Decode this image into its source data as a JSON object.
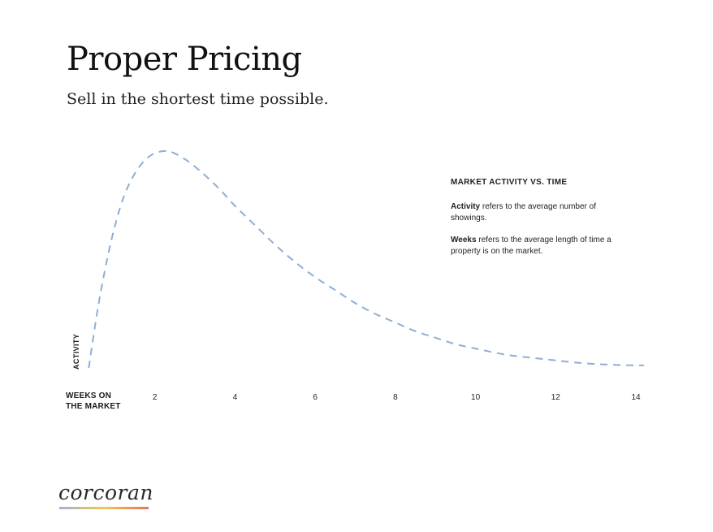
{
  "header": {
    "title": "Proper Pricing",
    "subtitle": "Sell in the shortest time possible."
  },
  "notes": {
    "heading": "MARKET ACTIVITY VS. TIME",
    "activity_term": "Activity",
    "activity_text": " refers to the average number of showings.",
    "weeks_term": "Weeks",
    "weeks_text": " refers to the average length of time a property is on the market."
  },
  "axes": {
    "x_label_line1": "WEEKS ON",
    "x_label_line2": "THE MARKET",
    "y_label": "ACTIVITY"
  },
  "brand": {
    "logo_text": "Corcoran",
    "gradient_colors": [
      "#9ab6d6",
      "#f2c94c",
      "#e8735a"
    ]
  },
  "chart_data": {
    "type": "line",
    "line_style": "dashed",
    "line_color": "#8eaed6",
    "xlabel": "WEEKS ON THE MARKET",
    "ylabel": "ACTIVITY",
    "xticks": [
      2,
      4,
      6,
      8,
      10,
      12,
      14
    ],
    "xlim": [
      0,
      14
    ],
    "ylim": [
      0,
      100
    ],
    "series": [
      {
        "x": [
          0.35,
          0.6,
          0.9,
          1.2,
          1.5,
          1.8,
          2.1,
          2.4,
          2.8,
          3.2,
          3.6,
          4.0,
          4.5,
          5.0,
          5.5,
          6.0,
          6.5,
          7.0,
          7.5,
          8.0,
          8.5,
          9.0,
          9.5,
          10.0,
          10.5,
          11.0,
          11.5,
          12.0,
          12.5,
          13.0,
          13.5,
          14.0,
          14.2
        ],
        "y": [
          0,
          30,
          58,
          78,
          90,
          97,
          100,
          100,
          96,
          90,
          83,
          75,
          66,
          57,
          49,
          42,
          36,
          30,
          25,
          21,
          17,
          14,
          11,
          9,
          7,
          5.5,
          4.5,
          3.5,
          2.5,
          1.8,
          1.4,
          1.2,
          1.2
        ]
      }
    ],
    "grid": false,
    "legend": false
  }
}
